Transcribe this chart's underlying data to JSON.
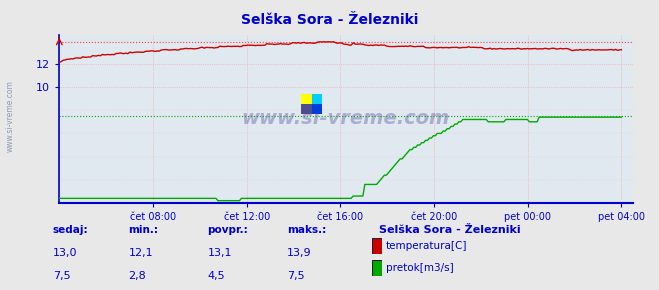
{
  "title": "Selška Sora - Železniki",
  "bg_color": "#e8e8e8",
  "plot_bg_color": "#e0e8f0",
  "grid_color": "#ff9999",
  "x_labels": [
    "čet 08:00",
    "čet 12:00",
    "čet 16:00",
    "čet 20:00",
    "pet 00:00",
    "pet 04:00"
  ],
  "x_ticks_frac": [
    0.1667,
    0.3333,
    0.5,
    0.6667,
    0.8333,
    1.0
  ],
  "total_points": 288,
  "ymin": 0.0,
  "ymax": 14.5,
  "temp_color": "#cc0000",
  "flow_color": "#00aa00",
  "max_temp_line_color": "#ff4444",
  "max_flow_line_color": "#00aa00",
  "axis_color": "#0000cc",
  "title_color": "#0000cc",
  "watermark": "www.si-vreme.com",
  "legend_title": "Selška Sora - Železniki",
  "legend_title_color": "#0000cc",
  "label_color": "#0000cc",
  "temp_min": 12.1,
  "temp_max": 13.9,
  "temp_avg": 13.1,
  "temp_now": 13.0,
  "flow_min": 2.8,
  "flow_max": 7.5,
  "flow_avg": 4.5,
  "flow_now": 7.5,
  "yticks": [
    10,
    12
  ],
  "sidebar_text": "www.si-vreme.com"
}
